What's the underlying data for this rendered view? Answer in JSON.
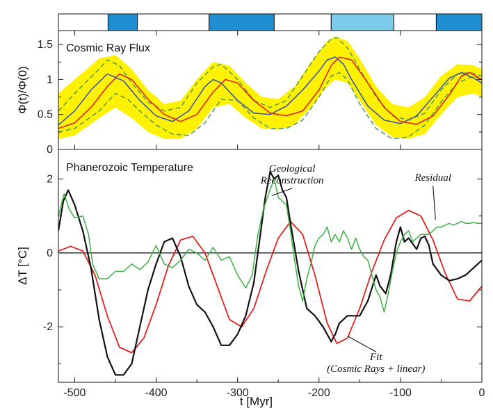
{
  "chart_data": [
    {
      "type": "bar",
      "title": "",
      "xlim": [
        -520,
        0
      ],
      "segments": [
        {
          "start": -520,
          "end": -459,
          "color": "#ffffff"
        },
        {
          "start": -459,
          "end": -423,
          "color": "#1f8fd0"
        },
        {
          "start": -423,
          "end": -335,
          "color": "#ffffff"
        },
        {
          "start": -335,
          "end": -255,
          "color": "#1f8fd0"
        },
        {
          "start": -255,
          "end": -185,
          "color": "#ffffff"
        },
        {
          "start": -185,
          "end": -108,
          "color": "#7ccbea"
        },
        {
          "start": -108,
          "end": -56,
          "color": "#ffffff"
        },
        {
          "start": -56,
          "end": 0,
          "color": "#1f8fd0"
        }
      ]
    },
    {
      "type": "line",
      "title": "Cosmic Ray Flux",
      "ylabel": "Φ(t)/Φ(0)",
      "xlim": [
        -520,
        0
      ],
      "ylim": [
        0,
        1.7
      ],
      "yticks": [
        "0",
        "0.5",
        "1",
        "1.5"
      ],
      "ytick_values": [
        0,
        0.5,
        1,
        1.5
      ],
      "band_color": "#fff200",
      "series": [
        {
          "color": "#3a56b0",
          "x": [
            -520,
            -500,
            -480,
            -460,
            -440,
            -420,
            -400,
            -380,
            -360,
            -340,
            -330,
            -320,
            -300,
            -280,
            -260,
            -240,
            -220,
            -200,
            -190,
            -180,
            -170,
            -160,
            -140,
            -120,
            -100,
            -80,
            -60,
            -40,
            -25,
            -10,
            0
          ],
          "y": [
            0.35,
            0.55,
            0.85,
            1.08,
            0.98,
            0.7,
            0.48,
            0.4,
            0.55,
            0.9,
            1.0,
            0.95,
            0.7,
            0.52,
            0.5,
            0.62,
            0.85,
            1.12,
            1.28,
            1.32,
            1.22,
            1.0,
            0.62,
            0.42,
            0.37,
            0.48,
            0.75,
            1.02,
            1.1,
            1.02,
            0.95
          ]
        },
        {
          "color": "#e02020",
          "x": [
            -520,
            -500,
            -480,
            -460,
            -445,
            -430,
            -410,
            -390,
            -370,
            -350,
            -330,
            -315,
            -300,
            -280,
            -260,
            -240,
            -220,
            -200,
            -185,
            -175,
            -160,
            -140,
            -120,
            -100,
            -80,
            -60,
            -40,
            -25,
            -15,
            0
          ],
          "y": [
            0.3,
            0.38,
            0.6,
            0.9,
            1.08,
            1.0,
            0.72,
            0.5,
            0.4,
            0.5,
            0.82,
            1.0,
            0.95,
            0.7,
            0.52,
            0.48,
            0.55,
            0.85,
            1.2,
            1.32,
            1.28,
            0.95,
            0.6,
            0.4,
            0.36,
            0.48,
            0.78,
            1.05,
            1.1,
            1.0
          ]
        }
      ],
      "band_upper": {
        "x": [
          -520,
          -500,
          -470,
          -450,
          -430,
          -410,
          -390,
          -370,
          -350,
          -330,
          -310,
          -290,
          -270,
          -250,
          -230,
          -210,
          -190,
          -180,
          -165,
          -150,
          -130,
          -110,
          -90,
          -70,
          -50,
          -30,
          -10,
          0
        ],
        "y": [
          0.8,
          1.0,
          1.3,
          1.35,
          1.15,
          0.85,
          0.65,
          0.7,
          1.0,
          1.25,
          1.2,
          0.95,
          0.75,
          0.72,
          0.9,
          1.25,
          1.55,
          1.62,
          1.55,
          1.3,
          0.9,
          0.65,
          0.6,
          0.75,
          1.05,
          1.22,
          1.2,
          1.15
        ]
      },
      "band_lower": {
        "x": [
          -520,
          -500,
          -470,
          -450,
          -430,
          -410,
          -390,
          -370,
          -350,
          -330,
          -310,
          -290,
          -270,
          -250,
          -230,
          -210,
          -190,
          -180,
          -165,
          -150,
          -130,
          -110,
          -90,
          -70,
          -50,
          -30,
          -10,
          0
        ],
        "y": [
          0.15,
          0.2,
          0.45,
          0.6,
          0.45,
          0.25,
          0.15,
          0.15,
          0.3,
          0.6,
          0.65,
          0.45,
          0.3,
          0.28,
          0.35,
          0.6,
          0.9,
          1.0,
          0.95,
          0.7,
          0.35,
          0.18,
          0.15,
          0.22,
          0.5,
          0.75,
          0.8,
          0.75
        ]
      },
      "dashed_upper": {
        "x": [
          -520,
          -500,
          -470,
          -460,
          -445,
          -430,
          -410,
          -390,
          -370,
          -350,
          -330,
          -320,
          -300,
          -280,
          -260,
          -240,
          -220,
          -200,
          -185,
          -178,
          -165,
          -150,
          -130,
          -110,
          -90,
          -70,
          -50,
          -30,
          -15,
          0
        ],
        "y": [
          0.55,
          0.8,
          1.15,
          1.28,
          1.2,
          0.95,
          0.68,
          0.55,
          0.6,
          0.95,
          1.18,
          1.22,
          1.0,
          0.7,
          0.6,
          0.7,
          1.05,
          1.4,
          1.58,
          1.6,
          1.45,
          1.15,
          0.75,
          0.48,
          0.42,
          0.52,
          0.85,
          1.08,
          1.1,
          1.05
        ]
      },
      "dashed_lower": {
        "x": [
          -520,
          -500,
          -470,
          -450,
          -435,
          -420,
          -400,
          -380,
          -360,
          -340,
          -320,
          -300,
          -280,
          -260,
          -240,
          -220,
          -200,
          -185,
          -175,
          -165,
          -150,
          -130,
          -110,
          -90,
          -70,
          -50,
          -30,
          -10,
          0
        ],
        "y": [
          0.25,
          0.3,
          0.55,
          0.8,
          0.72,
          0.55,
          0.35,
          0.22,
          0.2,
          0.38,
          0.72,
          0.7,
          0.45,
          0.3,
          0.3,
          0.42,
          0.75,
          1.05,
          1.1,
          1.0,
          0.65,
          0.3,
          0.15,
          0.18,
          0.35,
          0.68,
          0.95,
          1.05,
          1.0
        ]
      }
    },
    {
      "type": "line",
      "title": "Phanerozoic Temperature",
      "xlabel": "t [Myr]",
      "ylabel": "ΔT [°C]",
      "xlim": [
        -520,
        0
      ],
      "ylim": [
        -3.5,
        2.8
      ],
      "xticks": [
        "-500",
        "-400",
        "-300",
        "-200",
        "-100",
        "0"
      ],
      "xtick_values": [
        -500,
        -400,
        -300,
        -200,
        -100,
        0
      ],
      "yticks": [
        "-2",
        "0",
        "2"
      ],
      "ytick_values": [
        -2,
        0,
        2
      ],
      "series": [
        {
          "color": "#e02020",
          "x": [
            -520,
            -505,
            -490,
            -475,
            -460,
            -445,
            -430,
            -415,
            -400,
            -385,
            -370,
            -355,
            -340,
            -325,
            -310,
            -295,
            -280,
            -265,
            -250,
            -235,
            -220,
            -205,
            -190,
            -178,
            -165,
            -150,
            -135,
            -120,
            -105,
            -90,
            -75,
            -60,
            -45,
            -30,
            -15,
            0
          ],
          "y": [
            0.05,
            0.18,
            0.05,
            -0.6,
            -1.7,
            -2.55,
            -2.7,
            -2.3,
            -1.4,
            -0.35,
            0.35,
            0.45,
            0.0,
            -0.9,
            -1.8,
            -2.0,
            -1.5,
            -0.5,
            0.4,
            0.85,
            0.5,
            -0.6,
            -1.9,
            -2.45,
            -2.3,
            -1.5,
            -0.5,
            0.35,
            0.95,
            1.15,
            1.0,
            0.35,
            -0.55,
            -1.25,
            -1.3,
            -0.9
          ]
        },
        {
          "color": "#111111",
          "x": [
            -520,
            -514,
            -508,
            -500,
            -490,
            -480,
            -470,
            -460,
            -450,
            -440,
            -430,
            -420,
            -410,
            -400,
            -390,
            -380,
            -370,
            -360,
            -350,
            -340,
            -330,
            -320,
            -310,
            -300,
            -290,
            -280,
            -272,
            -266,
            -260,
            -255,
            -250,
            -245,
            -240,
            -235,
            -225,
            -215,
            -205,
            -195,
            -185,
            -180,
            -175,
            -165,
            -150,
            -140,
            -130,
            -125,
            -118,
            -112,
            -105,
            -100,
            -95,
            -90,
            -80,
            -75,
            -70,
            -65,
            -60,
            -50,
            -40,
            -30,
            -20,
            -10,
            0
          ],
          "y": [
            0.6,
            1.4,
            1.7,
            1.3,
            0.6,
            -0.4,
            -1.8,
            -2.8,
            -3.3,
            -3.3,
            -3.0,
            -2.0,
            -1.0,
            -0.3,
            0.3,
            0.4,
            -0.1,
            -0.9,
            -1.4,
            -1.6,
            -2.0,
            -2.5,
            -2.5,
            -2.2,
            -1.7,
            -0.8,
            0.5,
            1.5,
            2.2,
            2.0,
            2.1,
            1.7,
            1.5,
            0.8,
            -0.5,
            -1.5,
            -1.7,
            -2.0,
            -2.4,
            -2.2,
            -1.9,
            -1.7,
            -1.7,
            -1.3,
            -0.6,
            -0.9,
            -1.1,
            -0.6,
            0.3,
            0.7,
            0.3,
            0.4,
            0.1,
            0.4,
            0.45,
            0.2,
            -0.3,
            -0.6,
            -0.75,
            -0.7,
            -0.6,
            -0.4,
            -0.2
          ]
        },
        {
          "color": "#3cb043",
          "x": [
            -520,
            -513,
            -507,
            -500,
            -490,
            -483,
            -478,
            -470,
            -460,
            -450,
            -440,
            -430,
            -420,
            -410,
            -400,
            -390,
            -380,
            -370,
            -360,
            -350,
            -340,
            -330,
            -320,
            -310,
            -300,
            -290,
            -282,
            -275,
            -268,
            -262,
            -255,
            -250,
            -245,
            -240,
            -235,
            -230,
            -225,
            -220,
            -215,
            -210,
            -205,
            -200,
            -195,
            -190,
            -185,
            -180,
            -175,
            -170,
            -165,
            -160,
            -155,
            -150,
            -145,
            -140,
            -135,
            -130,
            -125,
            -120,
            -115,
            -110,
            -105,
            -100,
            -95,
            -90,
            -85,
            -80,
            -75,
            -70,
            -65,
            -60,
            -55,
            -50,
            -45,
            -40,
            -35,
            -30,
            -25,
            -20,
            -15,
            -10,
            -5,
            0
          ],
          "y": [
            1.0,
            1.6,
            1.2,
            0.95,
            1.0,
            0.5,
            -0.3,
            -0.7,
            -0.7,
            -0.5,
            -0.5,
            -0.3,
            -0.45,
            -0.25,
            0.2,
            -0.3,
            -0.4,
            -0.2,
            0.1,
            0.0,
            -0.2,
            0.15,
            -0.2,
            -0.1,
            -0.6,
            -0.95,
            -0.6,
            0.5,
            1.2,
            1.6,
            2.0,
            1.5,
            1.4,
            1.3,
            0.6,
            -0.2,
            -0.9,
            -1.3,
            -0.7,
            -0.3,
            0.2,
            0.4,
            0.5,
            0.7,
            0.3,
            0.5,
            0.3,
            0.6,
            0.4,
            0.1,
            0.4,
            0.1,
            -0.1,
            -0.2,
            -0.6,
            -1.0,
            -1.2,
            -1.6,
            -1.1,
            -0.5,
            0.0,
            0.3,
            0.5,
            0.6,
            0.3,
            0.4,
            0.5,
            0.5,
            0.5,
            0.6,
            0.7,
            0.7,
            0.75,
            0.8,
            0.75,
            0.8,
            0.85,
            0.8,
            0.8,
            0.82,
            0.8,
            0.8
          ]
        }
      ],
      "annotations": [
        {
          "lines": [
            "Geological",
            "Reconstruction"
          ],
          "target_x": -258,
          "target_y": 1.55,
          "anchor_x": -233,
          "anchor_y": 2.2
        },
        {
          "lines": [
            "Residual"
          ],
          "target_x": -57,
          "target_y": 0.9,
          "anchor_x": -60,
          "anchor_y": 1.95
        },
        {
          "lines": [
            "Fit",
            "(Cosmic Rays + linear)"
          ],
          "target_x": -165,
          "target_y": -2.25,
          "anchor_x": -130,
          "anchor_y": -2.9
        }
      ]
    }
  ]
}
